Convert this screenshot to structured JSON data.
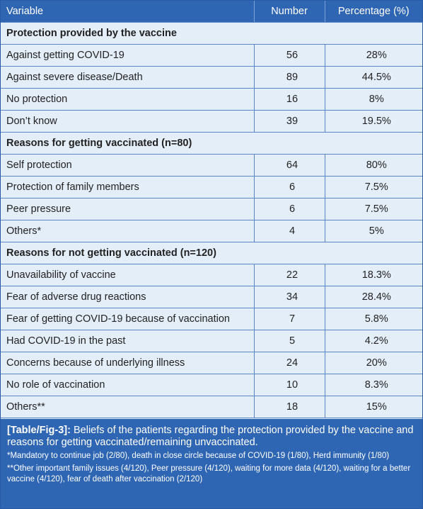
{
  "table": {
    "headers": [
      "Variable",
      "Number",
      "Percentage (%)"
    ],
    "sections": [
      {
        "title": "Protection provided by the vaccine",
        "rows": [
          [
            "Against getting COVID-19",
            "56",
            "28%"
          ],
          [
            "Against severe disease/Death",
            "89",
            "44.5%"
          ],
          [
            "No protection",
            "16",
            "8%"
          ],
          [
            "Don’t know",
            "39",
            "19.5%"
          ]
        ]
      },
      {
        "title": "Reasons for getting vaccinated (n=80)",
        "rows": [
          [
            "Self protection",
            "64",
            "80%"
          ],
          [
            "Protection of family members",
            "6",
            "7.5%"
          ],
          [
            "Peer pressure",
            "6",
            "7.5%"
          ],
          [
            "Others*",
            "4",
            "5%"
          ]
        ]
      },
      {
        "title": "Reasons for not getting vaccinated (n=120)",
        "rows": [
          [
            "Unavailability of vaccine",
            "22",
            "18.3%"
          ],
          [
            "Fear of adverse drug reactions",
            "34",
            "28.4%"
          ],
          [
            "Fear of getting COVID-19 because of vaccination",
            "7",
            "5.8%"
          ],
          [
            "Had COVID-19 in the past",
            "5",
            "4.2%"
          ],
          [
            "Concerns because of underlying illness",
            "24",
            "20%"
          ],
          [
            "No role of vaccination",
            "10",
            "8.3%"
          ],
          [
            "Others**",
            "18",
            "15%"
          ]
        ]
      }
    ]
  },
  "caption": {
    "label": "[Table/Fig-3]:",
    "text": " Beliefs of the patients regarding the protection provided by the vaccine and reasons for getting vaccinated/remaining unvaccinated.",
    "note1": "*Mandatory to continue job (2/80), death in close circle because of COVID-19 (1/80), Herd immunity (1/80)",
    "note2": "**Other important family issues (4/120), Peer pressure (4/120), waiting for more data (4/120), waiting for a better vaccine (4/120), fear of death after vaccination (2/120)"
  },
  "colors": {
    "header_bg": "#2f66b3",
    "body_bg": "#e4eef8",
    "rule": "#5b86c4"
  }
}
